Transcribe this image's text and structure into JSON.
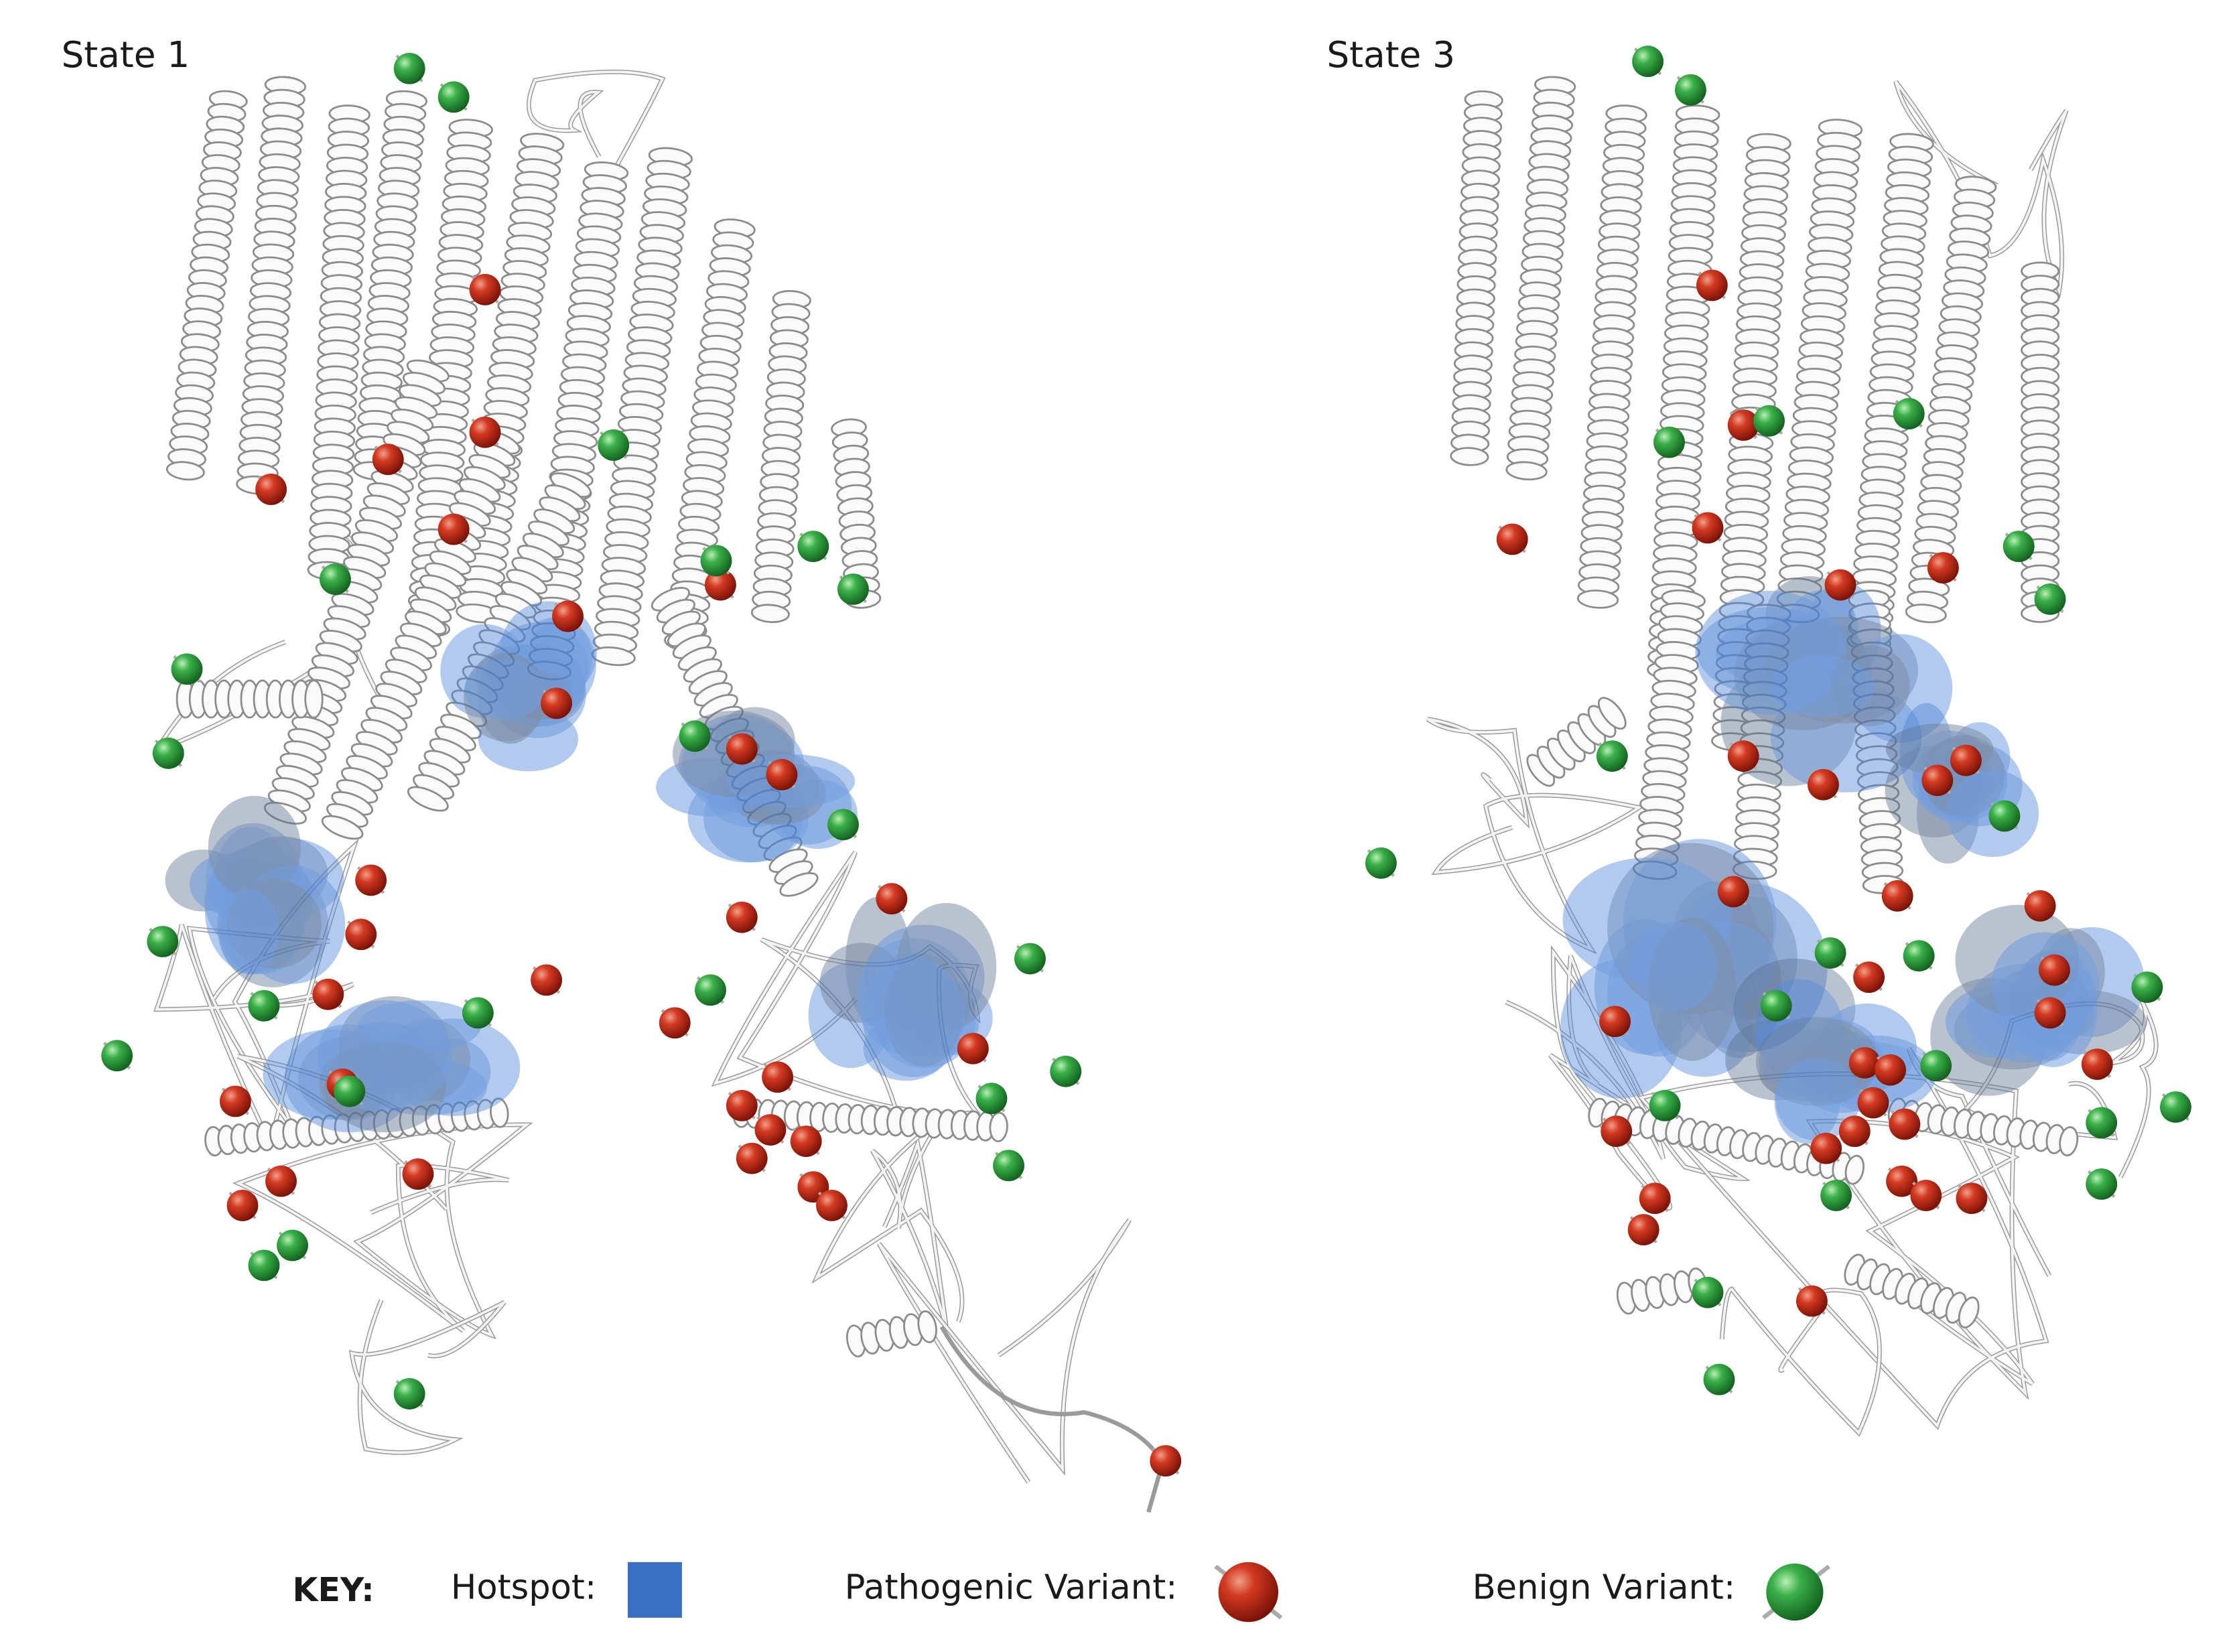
{
  "panels": [
    {
      "label": "State 1"
    },
    {
      "label": "State 3"
    }
  ],
  "key": {
    "title": "KEY:",
    "hotspot": "Hotspot:",
    "pathogenic": "Pathogenic Variant:",
    "benign": "Benign Variant:"
  }
}
